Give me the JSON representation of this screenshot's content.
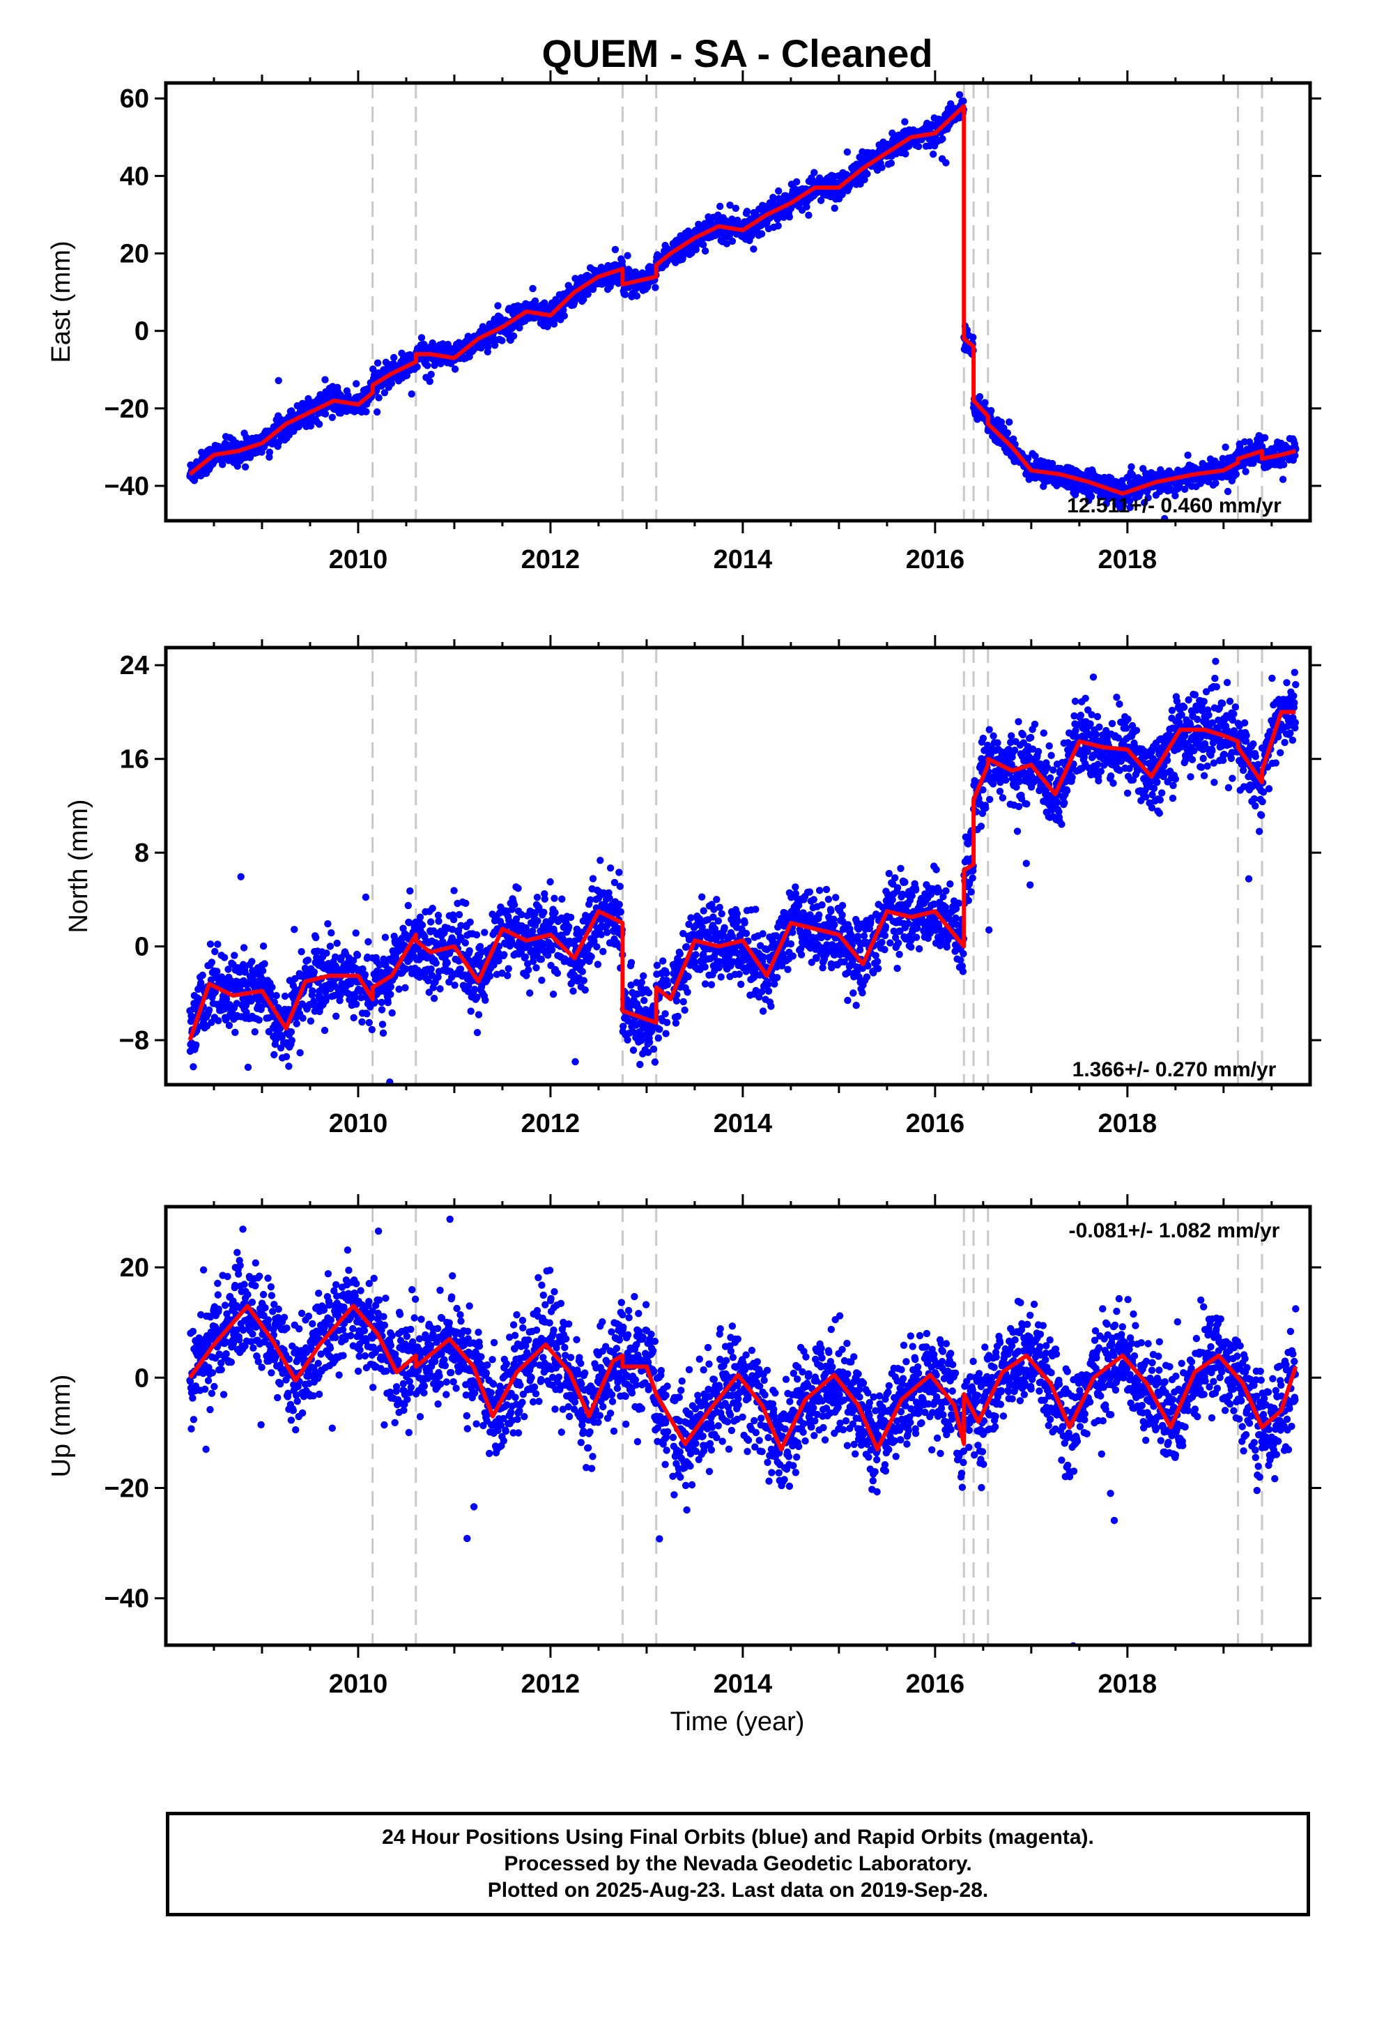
{
  "title": "QUEM  - SA - Cleaned",
  "xlabel": "Time (year)",
  "footer": {
    "line1": "24 Hour Positions Using Final Orbits (blue) and Rapid Orbits (magenta).",
    "line2": "Processed by the Nevada Geodetic Laboratory.",
    "line3": "Plotted on 2025-Aug-23. Last data on 2019-Sep-28."
  },
  "colors": {
    "data_points": "#0000ff",
    "model_line": "#ff0000",
    "event_lines": "#c8c8c8"
  },
  "chart_data": [
    {
      "type": "scatter",
      "component": "east",
      "ylabel": "East (mm)",
      "rate_text": "12.511+/- 0.460 mm/yr",
      "xlim": [
        2008.0,
        2019.9
      ],
      "ylim": [
        -49,
        64
      ],
      "xticks": [
        2010,
        2012,
        2014,
        2016,
        2018
      ],
      "yticks": [
        -40,
        -20,
        0,
        20,
        40,
        60
      ],
      "ytick_labels": [
        "−40",
        "−20",
        "0",
        "20",
        "40",
        "60"
      ],
      "event_lines": [
        2010.15,
        2010.6,
        2012.75,
        2013.1,
        2016.3,
        2016.4,
        2016.55,
        2019.15,
        2019.4
      ],
      "model_series": {
        "name": "model",
        "x": [
          2008.25,
          2008.5,
          2008.75,
          2009.0,
          2009.25,
          2009.5,
          2009.75,
          2010.0,
          2010.15,
          2010.15,
          2010.35,
          2010.6,
          2010.6,
          2010.75,
          2011.0,
          2011.25,
          2011.5,
          2011.75,
          2012.0,
          2012.25,
          2012.5,
          2012.75,
          2012.75,
          2013.1,
          2013.1,
          2013.25,
          2013.5,
          2013.75,
          2014.0,
          2014.25,
          2014.5,
          2014.75,
          2015.0,
          2015.25,
          2015.5,
          2015.75,
          2016.0,
          2016.3,
          2016.3,
          2016.4,
          2016.4,
          2016.55,
          2016.55,
          2016.8,
          2017.0,
          2017.3,
          2017.6,
          2017.95,
          2018.3,
          2018.7,
          2019.0,
          2019.15,
          2019.15,
          2019.4,
          2019.4,
          2019.6,
          2019.75
        ],
        "y": [
          -37,
          -32,
          -31,
          -29,
          -24,
          -21,
          -18,
          -19,
          -16,
          -14,
          -11,
          -8,
          -6,
          -6,
          -7,
          -2,
          1,
          5,
          4,
          10,
          14,
          16,
          12,
          14,
          17,
          20,
          24,
          27,
          26,
          30,
          33,
          37,
          37,
          42,
          46,
          50,
          51,
          58,
          -2,
          -4,
          -18,
          -22,
          -24,
          -30,
          -36,
          -37,
          -39,
          -42,
          -39,
          -37,
          -36,
          -34,
          -33,
          -31,
          -33,
          -32,
          -31
        ]
      },
      "data_points": {
        "name": "positions",
        "x": [],
        "y": [],
        "note_generated_in_script": ""
      }
    },
    {
      "type": "scatter",
      "component": "north",
      "ylabel": "North (mm)",
      "rate_text": "1.366+/- 0.270 mm/yr",
      "xlim": [
        2008.0,
        2019.9
      ],
      "ylim": [
        -11.8,
        25.5
      ],
      "xticks": [
        2010,
        2012,
        2014,
        2016,
        2018
      ],
      "yticks": [
        -8,
        0,
        8,
        16,
        24
      ],
      "ytick_labels": [
        "−8",
        "0",
        "8",
        "16",
        "24"
      ],
      "event_lines": [
        2010.15,
        2010.6,
        2012.75,
        2013.1,
        2016.3,
        2016.4,
        2016.55,
        2019.15,
        2019.4
      ],
      "model_series": {
        "name": "model",
        "x": [
          2008.25,
          2008.45,
          2008.7,
          2009.0,
          2009.25,
          2009.45,
          2009.7,
          2010.0,
          2010.15,
          2010.15,
          2010.35,
          2010.6,
          2010.6,
          2010.75,
          2011.0,
          2011.25,
          2011.5,
          2011.75,
          2012.0,
          2012.25,
          2012.5,
          2012.75,
          2012.75,
          2013.1,
          2013.1,
          2013.25,
          2013.5,
          2013.75,
          2014.0,
          2014.25,
          2014.5,
          2014.75,
          2015.0,
          2015.25,
          2015.5,
          2015.75,
          2016.0,
          2016.3,
          2016.3,
          2016.4,
          2016.4,
          2016.55,
          2016.55,
          2016.8,
          2017.0,
          2017.25,
          2017.5,
          2017.75,
          2018.0,
          2018.25,
          2018.55,
          2018.8,
          2019.0,
          2019.15,
          2019.15,
          2019.4,
          2019.4,
          2019.6,
          2019.75
        ],
        "y": [
          -8,
          -3.2,
          -4.2,
          -3.8,
          -7,
          -3,
          -2.5,
          -2.5,
          -4.5,
          -3.5,
          -2.5,
          1,
          0.5,
          -0.5,
          0,
          -3,
          1.5,
          0.5,
          1,
          -1,
          3,
          2,
          -5.5,
          -6.5,
          -3.5,
          -4.5,
          0.5,
          0,
          0.5,
          -2.5,
          2,
          1.5,
          1,
          -1.5,
          3,
          2.5,
          3,
          0,
          6.5,
          7,
          12.5,
          15.5,
          16,
          15,
          15.5,
          13,
          17.5,
          17,
          16.8,
          14.5,
          18.5,
          18.5,
          18,
          17.5,
          17,
          14,
          15,
          20,
          20
        ]
      },
      "data_points": {
        "name": "positions",
        "x": [],
        "y": []
      }
    },
    {
      "type": "scatter",
      "component": "up",
      "ylabel": "Up (mm)",
      "rate_text": "-0.081+/- 1.082 mm/yr",
      "xlim": [
        2008.0,
        2019.9
      ],
      "ylim": [
        -48.5,
        31
      ],
      "xticks": [
        2010,
        2012,
        2014,
        2016,
        2018
      ],
      "yticks": [
        -40,
        -20,
        0,
        20
      ],
      "ytick_labels": [
        "−40",
        "−20",
        "0",
        "20"
      ],
      "event_lines": [
        2010.15,
        2010.6,
        2012.75,
        2013.1,
        2016.3,
        2016.4,
        2016.55,
        2019.15,
        2019.4
      ],
      "model_series": {
        "name": "model",
        "x": [
          2008.25,
          2008.5,
          2008.85,
          2009.1,
          2009.35,
          2009.6,
          2009.95,
          2010.2,
          2010.4,
          2010.6,
          2010.6,
          2010.95,
          2011.2,
          2011.4,
          2011.65,
          2011.95,
          2012.2,
          2012.4,
          2012.65,
          2012.75,
          2012.75,
          2013.0,
          2013.1,
          2013.4,
          2013.65,
          2013.95,
          2014.2,
          2014.4,
          2014.65,
          2014.95,
          2015.2,
          2015.4,
          2015.65,
          2015.95,
          2016.2,
          2016.3,
          2016.3,
          2016.45,
          2016.7,
          2016.95,
          2017.2,
          2017.4,
          2017.65,
          2017.95,
          2018.2,
          2018.45,
          2018.7,
          2018.95,
          2019.2,
          2019.4,
          2019.6,
          2019.75
        ],
        "y": [
          0,
          6,
          13,
          7,
          -0.5,
          6,
          13,
          8,
          1,
          4,
          2,
          7,
          2,
          -7,
          1,
          6,
          1,
          -7,
          3,
          4,
          2,
          2,
          -3,
          -12,
          -6,
          0.5,
          -5,
          -13,
          -4,
          0.5,
          -5,
          -13,
          -4,
          0.5,
          -5,
          -12,
          -3,
          -8,
          1,
          4,
          -1,
          -9,
          0,
          4,
          -1,
          -9,
          1,
          4,
          -1,
          -9,
          -6,
          2
        ]
      },
      "data_points": {
        "name": "positions",
        "x": [],
        "y": []
      }
    }
  ]
}
